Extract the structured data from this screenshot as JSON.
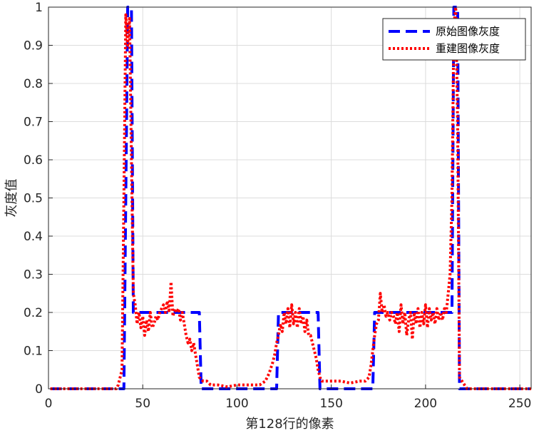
{
  "chart_data": {
    "type": "line",
    "xlabel": "第128行的像素",
    "ylabel": "灰度值",
    "xlim": [
      0,
      256
    ],
    "ylim": [
      0,
      1
    ],
    "xticks": [
      0,
      50,
      100,
      150,
      200,
      250
    ],
    "yticks": [
      0,
      0.1,
      0.2,
      0.3,
      0.4,
      0.5,
      0.6,
      0.7,
      0.8,
      0.9,
      1
    ],
    "ytick_labels": [
      "0",
      "0.1",
      "0.2",
      "0.3",
      "0.4",
      "0.5",
      "0.6",
      "0.7",
      "0.8",
      "0.9",
      "1"
    ],
    "grid": true,
    "legend_position": "top-right",
    "series": [
      {
        "name": "原始图像灰度",
        "color": "#0000ff",
        "style": "dashed",
        "x": [
          1,
          40,
          41,
          42,
          44,
          45,
          80,
          81,
          121,
          122,
          143,
          144,
          172,
          173,
          214,
          215,
          217,
          218,
          256
        ],
        "y": [
          0,
          0,
          0.5,
          1,
          1,
          0.2,
          0.2,
          0,
          0,
          0.2,
          0.2,
          0,
          0,
          0.2,
          0.2,
          1,
          1,
          0,
          0
        ]
      },
      {
        "name": "重建图像灰度",
        "color": "#ff0000",
        "style": "dotted",
        "x": [
          1,
          36,
          37,
          38,
          39,
          40,
          41,
          42,
          43,
          44,
          45,
          46,
          47,
          48,
          49,
          50,
          51,
          52,
          53,
          54,
          55,
          56,
          57,
          58,
          59,
          60,
          61,
          62,
          63,
          64,
          65,
          66,
          67,
          68,
          69,
          70,
          71,
          72,
          73,
          74,
          75,
          76,
          77,
          78,
          79,
          80,
          82,
          84,
          86,
          90,
          95,
          100,
          105,
          108,
          112,
          115,
          117,
          119,
          120,
          121,
          122,
          123,
          124,
          125,
          126,
          127,
          128,
          129,
          130,
          131,
          132,
          133,
          134,
          135,
          136,
          137,
          138,
          139,
          140,
          141,
          142,
          143,
          144,
          145,
          147,
          150,
          155,
          160,
          165,
          168,
          170,
          171,
          172,
          173,
          174,
          175,
          176,
          177,
          178,
          179,
          180,
          181,
          182,
          183,
          184,
          185,
          186,
          187,
          188,
          189,
          190,
          191,
          192,
          193,
          194,
          195,
          196,
          197,
          198,
          199,
          200,
          201,
          202,
          203,
          204,
          205,
          206,
          207,
          208,
          209,
          210,
          211,
          212,
          213,
          214,
          215,
          216,
          217,
          218,
          222,
          230,
          240,
          256
        ],
        "y": [
          0,
          0,
          0.01,
          0.03,
          0.05,
          0.5,
          0.98,
          0.9,
          0.97,
          0.6,
          0.25,
          0.22,
          0.17,
          0.2,
          0.16,
          0.19,
          0.14,
          0.18,
          0.15,
          0.2,
          0.16,
          0.17,
          0.19,
          0.18,
          0.2,
          0.21,
          0.22,
          0.2,
          0.23,
          0.2,
          0.28,
          0.19,
          0.21,
          0.2,
          0.21,
          0.18,
          0.2,
          0.17,
          0.14,
          0.12,
          0.13,
          0.1,
          0.12,
          0.09,
          0.06,
          0.03,
          0.02,
          0.02,
          0.01,
          0.01,
          0.005,
          0.01,
          0.01,
          0.01,
          0.01,
          0.02,
          0.04,
          0.07,
          0.09,
          0.12,
          0.14,
          0.17,
          0.15,
          0.2,
          0.17,
          0.21,
          0.16,
          0.22,
          0.17,
          0.2,
          0.16,
          0.21,
          0.17,
          0.19,
          0.15,
          0.18,
          0.14,
          0.14,
          0.12,
          0.1,
          0.08,
          0.05,
          0.03,
          0.02,
          0.02,
          0.02,
          0.02,
          0.015,
          0.02,
          0.02,
          0.03,
          0.06,
          0.1,
          0.14,
          0.17,
          0.18,
          0.25,
          0.2,
          0.22,
          0.19,
          0.2,
          0.18,
          0.2,
          0.19,
          0.17,
          0.2,
          0.15,
          0.22,
          0.17,
          0.2,
          0.14,
          0.18,
          0.2,
          0.13,
          0.2,
          0.17,
          0.21,
          0.16,
          0.2,
          0.17,
          0.22,
          0.16,
          0.21,
          0.18,
          0.2,
          0.17,
          0.21,
          0.18,
          0.2,
          0.18,
          0.21,
          0.2,
          0.25,
          0.3,
          0.5,
          0.95,
          1.0,
          0.7,
          0.03,
          0,
          0,
          0,
          0
        ]
      }
    ]
  }
}
